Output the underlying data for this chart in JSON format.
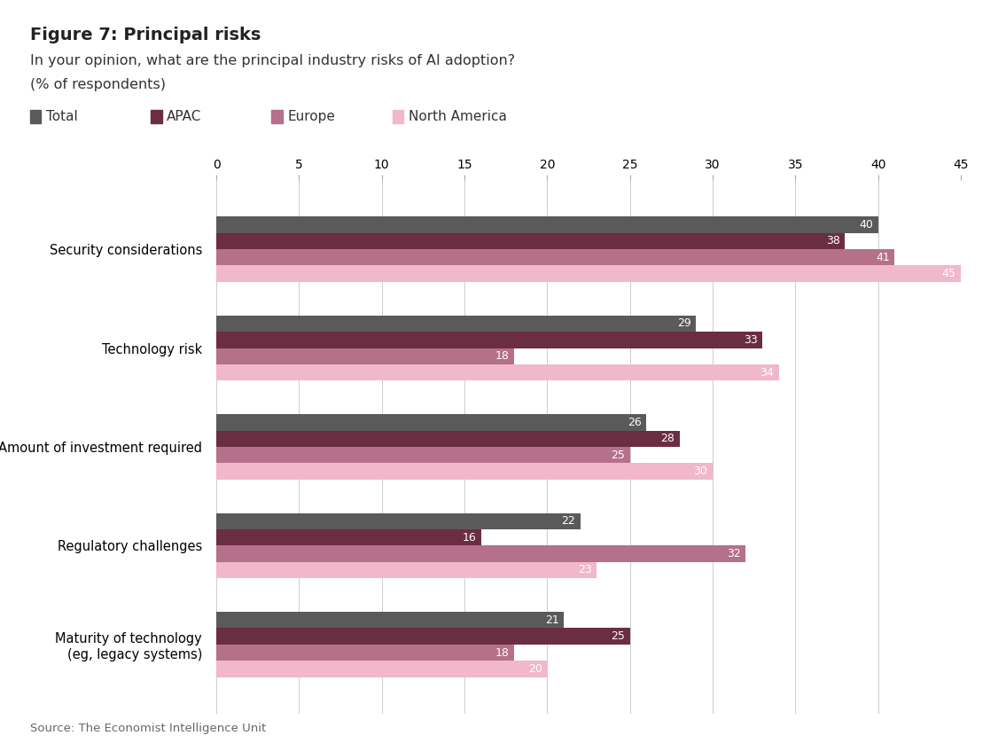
{
  "title_bold": "Figure 7: Principal risks",
  "subtitle": "In your opinion, what are the principal industry risks of AI adoption?",
  "ylabel_note": "(% of respondents)",
  "source": "Source: The Economist Intelligence Unit",
  "categories": [
    "Security considerations",
    "Technology risk",
    "Amount of investment required",
    "Regulatory challenges",
    "Maturity of technology\n(eg, legacy systems)"
  ],
  "series": {
    "Total": [
      40,
      29,
      26,
      22,
      21
    ],
    "APAC": [
      38,
      33,
      28,
      16,
      25
    ],
    "Europe": [
      41,
      18,
      25,
      32,
      18
    ],
    "North America": [
      45,
      34,
      30,
      23,
      20
    ]
  },
  "colors": {
    "Total": "#5a5a5a",
    "APAC": "#6b2d42",
    "Europe": "#b5708a",
    "North America": "#f0b8ca"
  },
  "xlim": [
    0,
    45
  ],
  "xticks": [
    0,
    5,
    10,
    15,
    20,
    25,
    30,
    35,
    40,
    45
  ],
  "background_color": "#ffffff",
  "bar_height": 0.165,
  "title_fontsize": 14,
  "subtitle_fontsize": 11.5,
  "tick_fontsize": 10,
  "category_fontsize": 10.5,
  "value_fontsize": 9,
  "legend_fontsize": 11
}
